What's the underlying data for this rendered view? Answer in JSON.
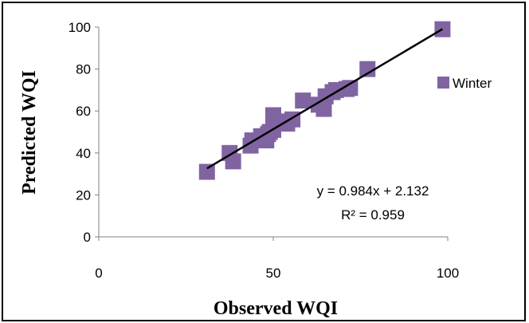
{
  "chart_data": {
    "type": "scatter",
    "xlabel": "Observed WQI",
    "ylabel": "Predicted WQI",
    "xlim": [
      0,
      100
    ],
    "ylim": [
      0,
      100
    ],
    "x_ticks": [
      0,
      50,
      100
    ],
    "y_ticks": [
      0,
      20,
      40,
      60,
      80,
      100
    ],
    "grid": false,
    "legend_position": "right",
    "series": [
      {
        "name": "Winter",
        "color": "#8064A2",
        "marker": "square",
        "points": [
          [
            31,
            31
          ],
          [
            37.5,
            40
          ],
          [
            38.5,
            36
          ],
          [
            43.5,
            43.5
          ],
          [
            44,
            46
          ],
          [
            46.5,
            48
          ],
          [
            48,
            46
          ],
          [
            48.5,
            49
          ],
          [
            49,
            50
          ],
          [
            50,
            51
          ],
          [
            50,
            58
          ],
          [
            52,
            55
          ],
          [
            54,
            54
          ],
          [
            55.5,
            56
          ],
          [
            58.5,
            65
          ],
          [
            63,
            63
          ],
          [
            64.5,
            61
          ],
          [
            65,
            67
          ],
          [
            67,
            69
          ],
          [
            68,
            70
          ],
          [
            71,
            70.5
          ],
          [
            72,
            71
          ],
          [
            77,
            80
          ],
          [
            98.5,
            99
          ]
        ]
      }
    ],
    "trendline": {
      "slope": 0.984,
      "intercept": 2.132,
      "x_range": [
        31,
        98.5
      ],
      "color": "#000000",
      "equation_label": "y = 0.984x + 2.132",
      "r2_label": "R² = 0.959"
    }
  }
}
